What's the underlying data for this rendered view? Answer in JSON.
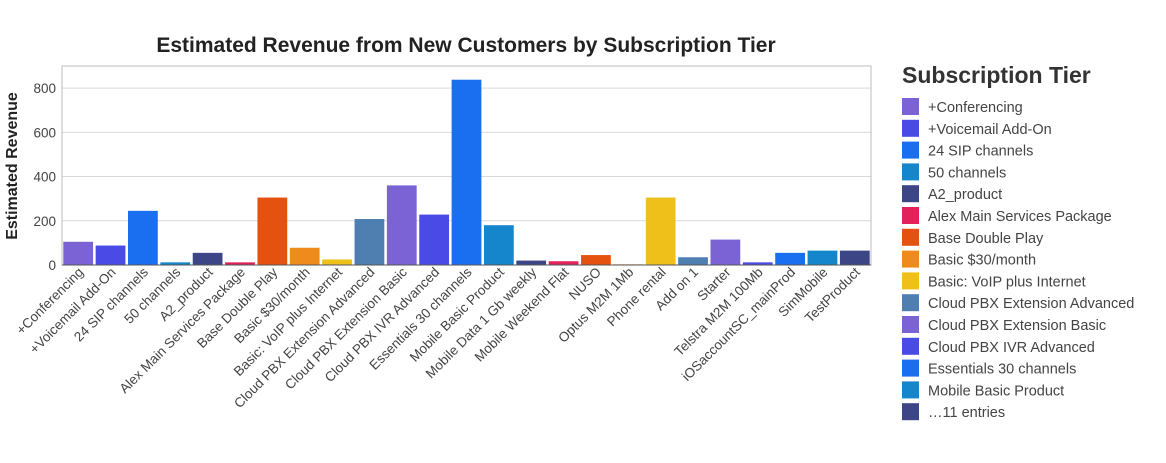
{
  "chart_data": {
    "type": "bar",
    "title": "Estimated Revenue from New Customers by Subscription Tier",
    "xlabel": "",
    "ylabel": "Estimated Revenue",
    "ylim": [
      0,
      900
    ],
    "yticks": [
      0,
      200,
      400,
      600,
      800
    ],
    "grid": true,
    "legend_position": "right",
    "legend_title": "Subscription Tier",
    "categories": [
      "+Conferencing",
      "+Voicemail Add-On",
      "24 SIP channels",
      "50 channels",
      "A2_product",
      "Alex Main Services Package",
      "Base Double Play",
      "Basic $30/month",
      "Basic: VoIP plus Internet",
      "Cloud PBX Extension Advanced",
      "Cloud PBX Extension Basic",
      "Cloud PBX IVR Advanced",
      "Essentials 30 channels",
      "Mobile Basic Product",
      "Mobile Data 1 Gb weekly",
      "Mobile Weekend Flat",
      "NUSO",
      "Optus M2M 1Mb",
      "Phone rental",
      "Add on 1",
      "Starter",
      "Telstra M2M 100Mb",
      "iOSaccountSC_mainProd",
      "SimMobile",
      "TestProduct"
    ],
    "values": [
      105,
      88,
      245,
      12,
      55,
      12,
      305,
      78,
      25,
      208,
      360,
      228,
      838,
      180,
      20,
      17,
      45,
      3,
      305,
      35,
      115,
      12,
      55,
      65,
      65
    ],
    "colors": [
      "#7b63d6",
      "#4a4ae6",
      "#1a6ff0",
      "#1585cc",
      "#3c4585",
      "#e0215a",
      "#e5510f",
      "#ef8a1c",
      "#efc01a",
      "#4e7fb0",
      "#7b63d6",
      "#4a4ae6",
      "#1a6ff0",
      "#1585cc",
      "#3c4585",
      "#e0215a",
      "#e5510f",
      "#ef8a1c",
      "#efc01a",
      "#4e7fb0",
      "#7b63d6",
      "#4a4ae6",
      "#1a6ff0",
      "#1585cc",
      "#3c4585"
    ],
    "legend_entries": [
      {
        "label": "+Conferencing",
        "color": "#7b63d6"
      },
      {
        "label": "+Voicemail Add-On",
        "color": "#4a4ae6"
      },
      {
        "label": "24 SIP channels",
        "color": "#1a6ff0"
      },
      {
        "label": "50 channels",
        "color": "#1585cc"
      },
      {
        "label": "A2_product",
        "color": "#3c4585"
      },
      {
        "label": "Alex Main Services Package",
        "color": "#e0215a"
      },
      {
        "label": "Base Double Play",
        "color": "#e5510f"
      },
      {
        "label": "Basic $30/month",
        "color": "#ef8a1c"
      },
      {
        "label": "Basic: VoIP plus Internet",
        "color": "#efc01a"
      },
      {
        "label": "Cloud PBX Extension Advanced",
        "color": "#4e7fb0"
      },
      {
        "label": "Cloud PBX Extension Basic",
        "color": "#7b63d6"
      },
      {
        "label": "Cloud PBX IVR Advanced",
        "color": "#4a4ae6"
      },
      {
        "label": "Essentials 30 channels",
        "color": "#1a6ff0"
      },
      {
        "label": "Mobile Basic Product",
        "color": "#1585cc"
      },
      {
        "label": "…11 entries",
        "color": "#3c4585"
      }
    ]
  }
}
